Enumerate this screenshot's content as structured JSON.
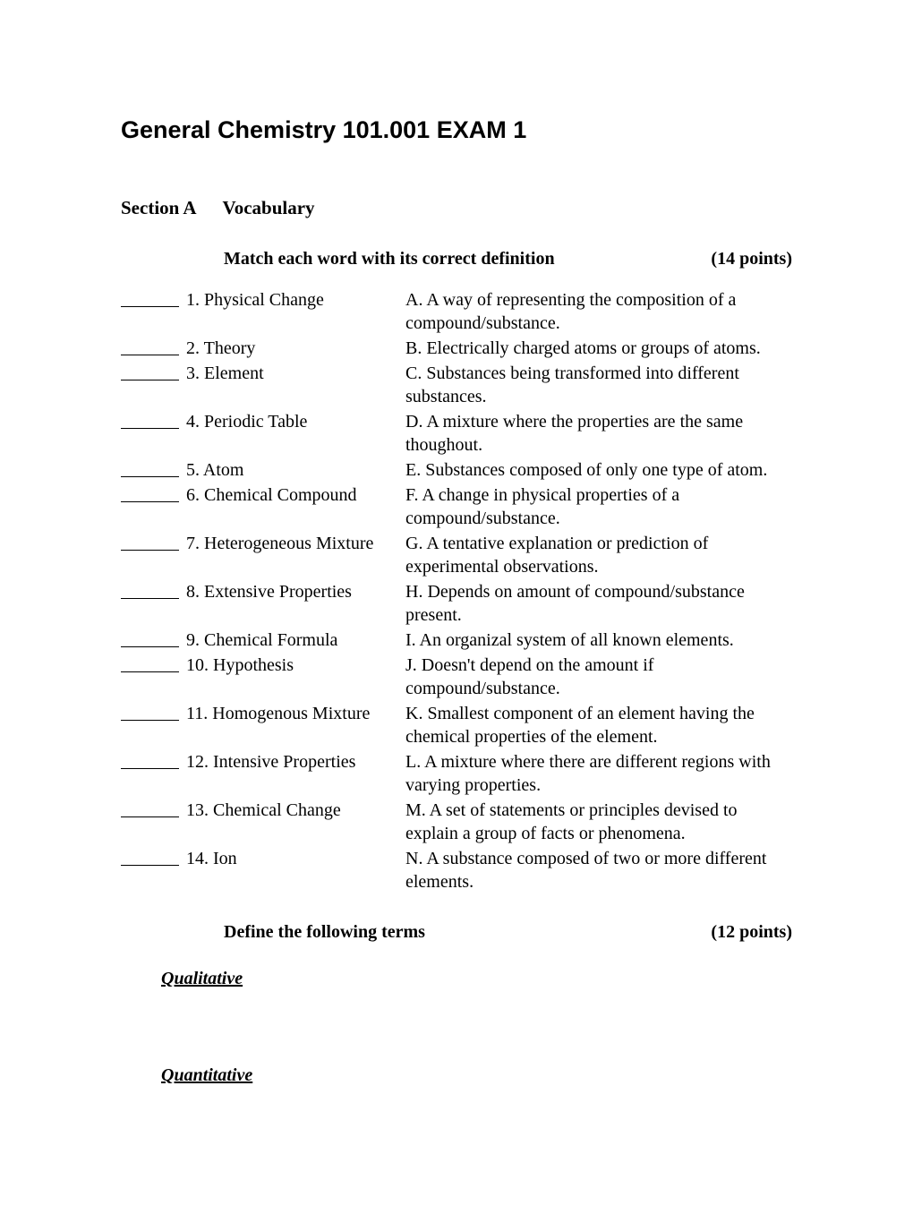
{
  "title": "General Chemistry 101.001 EXAM 1",
  "section": {
    "letter": "Section A",
    "name": "Vocabulary"
  },
  "matching": {
    "instruction": "Match each word with its correct definition",
    "points": "(14 points)",
    "items": [
      {
        "num": "1.",
        "term": "Physical Change",
        "letter": "A.",
        "def": "A way of representing the composition of a compound/substance."
      },
      {
        "num": "2.",
        "term": "Theory",
        "letter": "B.",
        "def": "Electrically charged atoms or groups of atoms."
      },
      {
        "num": "3.",
        "term": "Element",
        "letter": "C.",
        "def": "Substances being transformed into different substances."
      },
      {
        "num": "4.",
        "term": "Periodic Table",
        "letter": "D.",
        "def": "A mixture where the properties are the same thoughout."
      },
      {
        "num": "5.",
        "term": "Atom",
        "letter": "E.",
        "def": "Substances composed of only one type of atom."
      },
      {
        "num": "6.",
        "term": "Chemical Compound",
        "letter": "F.",
        "def": "A change in physical properties of a compound/substance."
      },
      {
        "num": "7.",
        "term": "Heterogeneous Mixture",
        "letter": "G.",
        "def": "A tentative explanation or prediction of experimental observations."
      },
      {
        "num": "8.",
        "term": "Extensive Properties",
        "letter": "H.",
        "def": "Depends on amount of compound/substance present."
      },
      {
        "num": "9.",
        "term": "Chemical Formula",
        "letter": "I.",
        "def": "An organizal system of all known elements."
      },
      {
        "num": "10.",
        "term": "Hypothesis",
        "letter": "J.",
        "def": "Doesn't depend on the amount if compound/substance."
      },
      {
        "num": "11.",
        "term": "Homogenous Mixture",
        "letter": "K.",
        "def": "Smallest component of an element having the chemical properties of the element."
      },
      {
        "num": "12.",
        "term": "Intensive Properties",
        "letter": "L.",
        "def": "A mixture where there are different regions with varying properties."
      },
      {
        "num": "13.",
        "term": "Chemical Change",
        "letter": "M.",
        "def": "A set of statements or principles devised to explain a group of facts or phenomena."
      },
      {
        "num": "14.",
        "term": "Ion",
        "letter": "N.",
        "def": "A substance composed of two or more different elements."
      }
    ]
  },
  "defining": {
    "instruction": "Define the following terms",
    "points": "(12 points)",
    "terms": [
      "Qualitative",
      "Quantitative"
    ]
  }
}
